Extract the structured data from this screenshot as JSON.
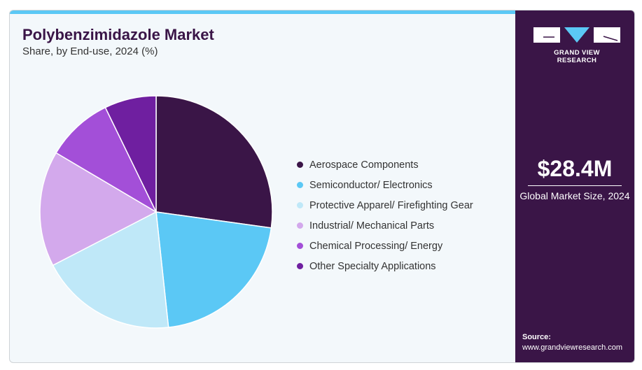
{
  "title": "Polybenzimidazole Market",
  "subtitle": "Share, by End-use, 2024 (%)",
  "brand": {
    "name": "GRAND VIEW RESEARCH"
  },
  "stat": {
    "value": "$28.4M",
    "caption": "Global Market Size, 2024"
  },
  "source": {
    "label": "Source:",
    "url": "www.grandviewresearch.com"
  },
  "colors": {
    "accent": "#5bc8f5",
    "panel": "#3a1547"
  },
  "chart_data": {
    "type": "pie",
    "title": "Polybenzimidazole Market",
    "subtitle": "Share, by End-use, 2024 (%)",
    "legend_position": "right",
    "categories": [
      "Aerospace Components",
      "Semiconductor/ Electronics",
      "Protective Apparel/ Firefighting Gear",
      "Industrial/ Mechanical Parts",
      "Chemical Processing/ Energy",
      "Other Specialty Applications"
    ],
    "values": [
      27.2,
      21.1,
      19.1,
      16.1,
      9.3,
      7.2
    ],
    "colors": [
      "#3a1547",
      "#5bc8f5",
      "#bfe8f8",
      "#d3a9ec",
      "#a34fd8",
      "#6f1fa0"
    ]
  }
}
